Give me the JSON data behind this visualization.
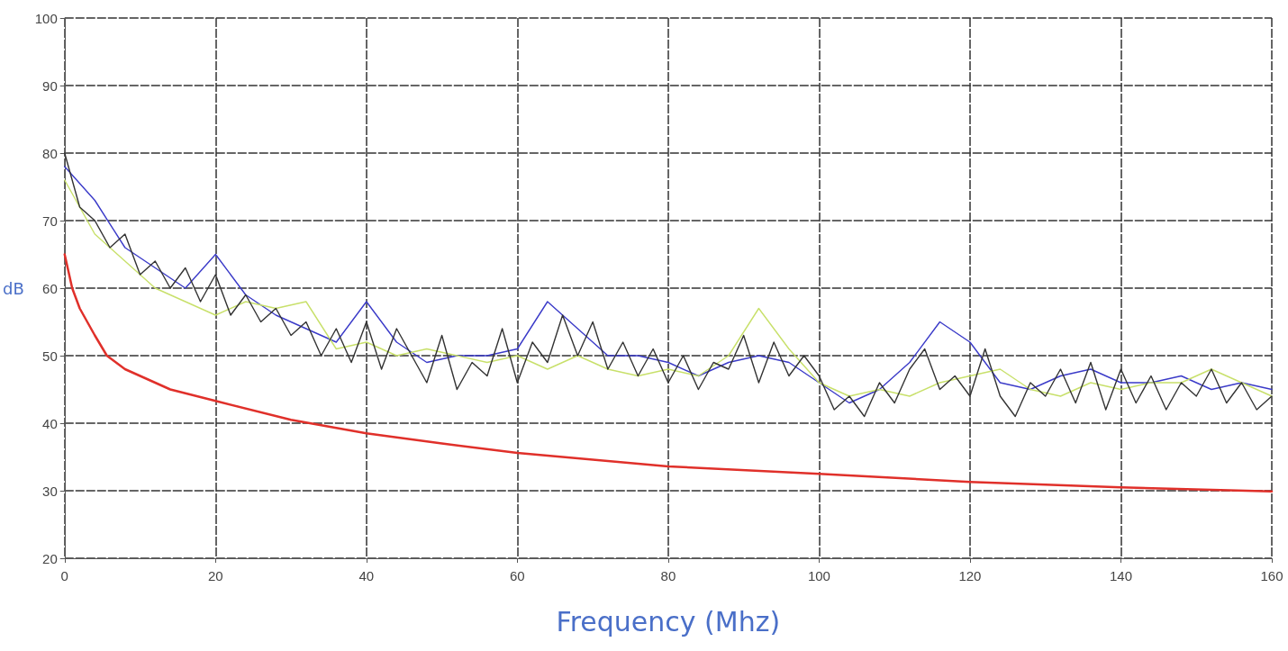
{
  "chart_data": {
    "type": "line",
    "xlabel": "Frequency (Mhz)",
    "ylabel": "dB",
    "xlim": [
      0,
      160
    ],
    "xticks": [
      0,
      20,
      40,
      60,
      80,
      100,
      120,
      140,
      160
    ],
    "ylim": [
      20,
      100
    ],
    "yticks": [
      20,
      30,
      40,
      50,
      60,
      70,
      80,
      90,
      100
    ],
    "grid": true,
    "marker": "none",
    "line_style": "solid",
    "series": [
      {
        "color": "#3a3ac8",
        "x": [
          0,
          4,
          8,
          12,
          16,
          20,
          24,
          28,
          32,
          36,
          40,
          44,
          48,
          52,
          56,
          60,
          64,
          68,
          72,
          76,
          80,
          84,
          88,
          92,
          96,
          100,
          104,
          108,
          112,
          116,
          120,
          124,
          128,
          132,
          136,
          140,
          144,
          148,
          152,
          156,
          160
        ],
        "values": [
          78,
          73,
          66,
          63,
          60,
          65,
          59,
          56,
          54,
          52,
          58,
          52,
          49,
          50,
          50,
          51,
          58,
          54,
          50,
          50,
          49,
          47,
          49,
          50,
          49,
          46,
          43,
          45,
          49,
          55,
          52,
          46,
          45,
          47,
          48,
          46,
          46,
          47,
          45,
          46,
          45
        ]
      },
      {
        "color": "#c8e06a",
        "x": [
          0,
          4,
          8,
          12,
          16,
          20,
          24,
          28,
          32,
          36,
          40,
          44,
          48,
          52,
          56,
          60,
          64,
          68,
          72,
          76,
          80,
          84,
          88,
          92,
          96,
          100,
          104,
          108,
          112,
          116,
          120,
          124,
          128,
          132,
          136,
          140,
          144,
          148,
          152,
          156,
          160
        ],
        "values": [
          76,
          68,
          64,
          60,
          58,
          56,
          58,
          57,
          58,
          51,
          52,
          50,
          51,
          50,
          49,
          50,
          48,
          50,
          48,
          47,
          48,
          47,
          50,
          57,
          51,
          46,
          44,
          45,
          44,
          46,
          47,
          48,
          45,
          44,
          46,
          45,
          46,
          46,
          48,
          46,
          44
        ]
      },
      {
        "color": "#333333",
        "x": [
          0,
          2,
          4,
          6,
          8,
          10,
          12,
          14,
          16,
          18,
          20,
          22,
          24,
          26,
          28,
          30,
          32,
          34,
          36,
          38,
          40,
          42,
          44,
          46,
          48,
          50,
          52,
          54,
          56,
          58,
          60,
          62,
          64,
          66,
          68,
          70,
          72,
          74,
          76,
          78,
          80,
          82,
          84,
          86,
          88,
          90,
          92,
          94,
          96,
          98,
          100,
          102,
          104,
          106,
          108,
          110,
          112,
          114,
          116,
          118,
          120,
          122,
          124,
          126,
          128,
          130,
          132,
          134,
          136,
          138,
          140,
          142,
          144,
          146,
          148,
          150,
          152,
          154,
          156,
          158,
          160
        ],
        "values": [
          80,
          72,
          70,
          66,
          68,
          62,
          64,
          60,
          63,
          58,
          62,
          56,
          59,
          55,
          57,
          53,
          55,
          50,
          54,
          49,
          55,
          48,
          54,
          50,
          46,
          53,
          45,
          49,
          47,
          54,
          46,
          52,
          49,
          56,
          50,
          55,
          48,
          52,
          47,
          51,
          46,
          50,
          45,
          49,
          48,
          53,
          46,
          52,
          47,
          50,
          47,
          42,
          44,
          41,
          46,
          43,
          48,
          51,
          45,
          47,
          44,
          51,
          44,
          41,
          46,
          44,
          48,
          43,
          49,
          42,
          48,
          43,
          47,
          42,
          46,
          44,
          48,
          43,
          46,
          42,
          44
        ]
      },
      {
        "color": "#e0302a",
        "x": [
          0,
          1,
          2,
          3,
          4,
          5.6,
          8,
          10,
          14,
          20,
          30,
          40,
          50,
          60,
          80,
          100,
          120,
          140,
          160
        ],
        "values": [
          65,
          60,
          57,
          55,
          53,
          50,
          48,
          47,
          45,
          43.3,
          40.5,
          38.5,
          37,
          35.6,
          33.6,
          32.5,
          31.3,
          30.5,
          29.9
        ]
      }
    ]
  }
}
